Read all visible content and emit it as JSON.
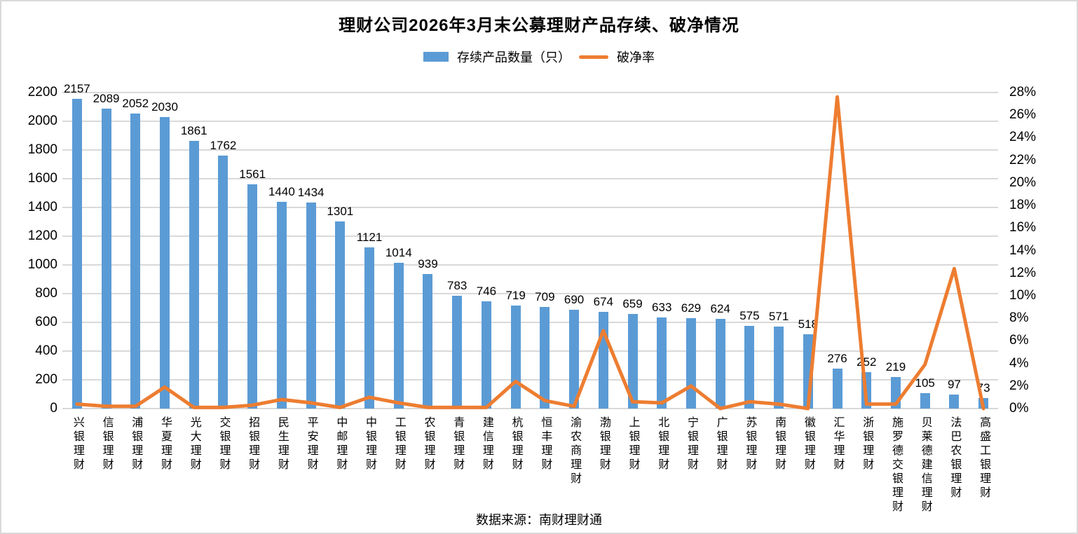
{
  "title": "理财公司2026年3月末公募理财产品存续、破净情况",
  "source": "数据来源：南财理财通",
  "colors": {
    "bar": "#5b9bd5",
    "line": "#ed7d31",
    "grid": "#d9d9d9",
    "text": "#000000",
    "frame": "#d9d9d9"
  },
  "chart_data": {
    "type": "bar",
    "subtype": "combo-bar-line-dual-axis",
    "title": "理财公司2026年3月末公募理财产品存续、破净情况",
    "grid": "horizontal",
    "legend_position": "top",
    "categories": [
      "兴银理财",
      "信银理财",
      "浦银理财",
      "华夏理财",
      "光大理财",
      "交银理财",
      "招银理财",
      "民生理财",
      "平安理财",
      "中邮理财",
      "中银理财",
      "工银理财",
      "农银理财",
      "青银理财",
      "建信理财",
      "杭银理财",
      "恒丰理财",
      "渝农商理财",
      "渤银理财",
      "上银理财",
      "北银理财",
      "宁银理财",
      "广银理财",
      "苏银理财",
      "南银理财",
      "徽银理财",
      "汇华理财",
      "浙银理财",
      "施罗德交银理财",
      "贝莱德建信理财",
      "法巴农银理财",
      "高盛工银理财"
    ],
    "series": [
      {
        "name": "存续产品数量（只）",
        "type": "bar",
        "axis": "left",
        "color": "#5b9bd5",
        "values": [
          2157,
          2089,
          2052,
          2030,
          1861,
          1762,
          1561,
          1440,
          1434,
          1301,
          1121,
          1014,
          939,
          783,
          746,
          719,
          709,
          690,
          674,
          659,
          633,
          629,
          624,
          575,
          571,
          518,
          276,
          252,
          219,
          105,
          97,
          73
        ]
      },
      {
        "name": "破净率",
        "type": "line",
        "axis": "right",
        "color": "#ed7d31",
        "values_percent": [
          0.4,
          0.2,
          0.2,
          1.9,
          0.1,
          0.1,
          0.3,
          0.8,
          0.5,
          0.1,
          1.0,
          0.5,
          0.1,
          0.1,
          0.1,
          2.4,
          0.7,
          0.2,
          6.9,
          0.6,
          0.5,
          2.0,
          0.0,
          0.6,
          0.4,
          0.0,
          27.6,
          0.4,
          0.4,
          3.9,
          12.4,
          0.0
        ]
      }
    ],
    "left_axis": {
      "min": 0,
      "max": 2200,
      "step": 200,
      "tick_labels": [
        "0",
        "200",
        "400",
        "600",
        "800",
        "1000",
        "1200",
        "1400",
        "1600",
        "1800",
        "2000",
        "2200"
      ]
    },
    "right_axis": {
      "min": 0,
      "max": 28,
      "step": 2,
      "format": "percent",
      "tick_labels": [
        "0%",
        "2%",
        "4%",
        "6%",
        "8%",
        "10%",
        "12%",
        "14%",
        "16%",
        "18%",
        "20%",
        "22%",
        "24%",
        "26%",
        "28%"
      ]
    }
  }
}
